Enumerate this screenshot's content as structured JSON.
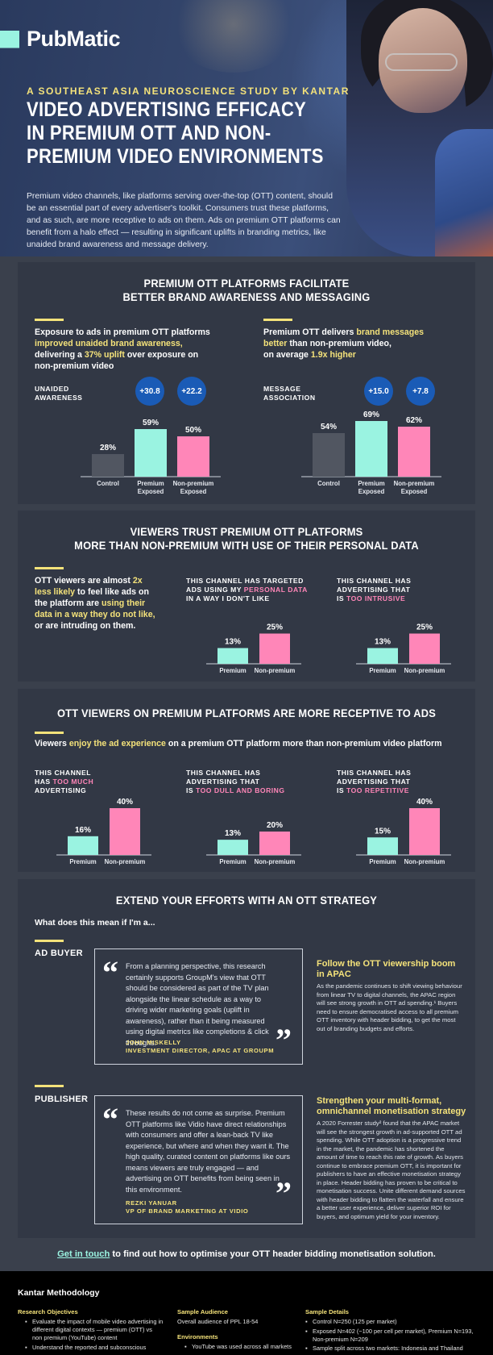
{
  "brand": {
    "name": "PubMatic",
    "accent": "#f4e27a",
    "mint": "#9af3e1",
    "pink": "#ff86b8",
    "dark_bar": "#515661",
    "bubble": "#1a5bb6"
  },
  "hero": {
    "kicker": "A SOUTHEAST ASIA NEUROSCIENCE STUDY BY KANTAR",
    "title": "VIDEO ADVERTISING EFFICACY IN PREMIUM OTT AND NON-PREMIUM VIDEO ENVIRONMENTS",
    "intro": "Premium video channels, like platforms serving over-the-top (OTT) content, should be an essential part of every advertiser's toolkit. Consumers trust these platforms, and as such, are more receptive to ads on them. Ads on premium OTT platforms can benefit from a halo effect — resulting in significant uplifts in branding metrics, like unaided brand awareness and message delivery."
  },
  "section1": {
    "title_l1": "PREMIUM OTT PLATFORMS FACILITATE",
    "title_l2": "BETTER BRAND AWARENESS AND MESSAGING",
    "left": {
      "lead_a": "Exposure to ads in premium OTT platforms",
      "lead_b": "improved unaided brand awareness,",
      "lead_c": "delivering a",
      "lead_d": "37% uplift",
      "lead_e": "over exposure on",
      "lead_f": "non-premium video",
      "metric_l1": "UNAIDED",
      "metric_l2": "AWARENESS",
      "bubble1": "+30.8",
      "bubble2": "+22.2"
    },
    "right": {
      "lead_a": "Premium OTT delivers",
      "lead_b": "brand messages",
      "lead_c": "better",
      "lead_d": "than non-premium video,",
      "lead_e": "on average",
      "lead_f": "1.9x higher",
      "metric_l1": "MESSAGE",
      "metric_l2": "ASSOCIATION",
      "bubble1": "+15.0",
      "bubble2": "+7.8"
    }
  },
  "section2": {
    "title_l1": "VIEWERS TRUST PREMIUM OTT PLATFORMS",
    "title_l2": "MORE THAN NON-PREMIUM WITH USE OF THEIR PERSONAL DATA",
    "lead_a": "OTT viewers are almost",
    "lead_b": "2x less likely",
    "lead_c": "to feel like ads on the platform are",
    "lead_d": "using their data in a way they do not like,",
    "lead_e": "or are intruding on them.",
    "c1_l1": "THIS CHANNEL HAS TARGETED",
    "c1_l2a": "ADS USING MY",
    "c1_l2b": "PERSONAL DATA",
    "c1_l3": "IN A WAY I DON'T LIKE",
    "c2_l1": "THIS CHANNEL HAS",
    "c2_l2": "ADVERTISING THAT",
    "c2_l3a": "IS",
    "c2_l3b": "TOO INTRUSIVE"
  },
  "section3": {
    "title": "OTT VIEWERS ON PREMIUM PLATFORMS ARE MORE RECEPTIVE TO ADS",
    "lead_a": "Viewers",
    "lead_b": "enjoy the ad experience",
    "lead_c": "on a premium OTT platform more than non-premium video platform",
    "c1_l1": "THIS CHANNEL",
    "c1_l2a": "HAS",
    "c1_l2b": "TOO MUCH",
    "c1_l3": "ADVERTISING",
    "c2_l1": "THIS CHANNEL HAS",
    "c2_l2": "ADVERTISING THAT",
    "c2_l3a": "IS",
    "c2_l3b": "TOO DULL AND BORING",
    "c3_l1": "THIS CHANNEL HAS",
    "c3_l2": "ADVERTISING THAT",
    "c3_l3a": "IS",
    "c3_l3b": "TOO REPETITIVE"
  },
  "section4": {
    "title": "EXTEND YOUR EFFORTS WITH AN OTT STRATEGY",
    "question": "What does this mean if I'm a...",
    "buyer": {
      "role": "AD BUYER",
      "quote": "From a planning perspective, this research certainly supports GroupM's view that OTT should be considered as part of the TV plan alongside the linear schedule as a way to driving wider marketing goals (uplift in awareness), rather than it being measured using digital metrics like completions & click throughs.",
      "name": "JOHN MISKELLY",
      "title": "INVESTMENT DIRECTOR, APAC AT GROUPM",
      "side_h1": "Follow the OTT viewership boom",
      "side_h2": "in APAC",
      "side_t": "As the pandemic continues to shift viewing behaviour from linear TV to digital channels, the APAC region will see strong growth in OTT ad spending.¹ Buyers need to ensure democratised access to all premium OTT inventory with header bidding, to get the most out of branding budgets and efforts."
    },
    "publisher": {
      "role": "PUBLISHER",
      "quote": "These results do not come as surprise. Premium OTT platforms like Vidio have direct relationships with consumers and offer a lean-back TV like experience, but where and when they want it. The high quality, curated content on platforms like ours means viewers are truly engaged — and advertising on OTT benefits from being seen in this environment.",
      "name": "REZKI YANUAR",
      "title": "VP OF BRAND MARKETING AT VIDIO",
      "side_h1": "Strengthen your multi-format,",
      "side_h2": "omnichannel monetisation strategy",
      "side_t": "A 2020 Forrester study² found that the APAC market will see the strongest growth in ad-supported OTT ad spending. While OTT adoption is a progressive trend in the market, the pandemic has shortened the amount of time to reach this rate of growth. As buyers continue to embrace premium OTT, it is important for publishers to have an effective monetisation strategy in place. Header bidding has proven to be critical to monetisation success. Unite different demand sources with header bidding to flatten the waterfall and ensure a better user experience, deliver superior ROI for buyers, and optimum yield for your inventory."
    }
  },
  "cta": {
    "link": "Get in touch",
    "rest": " to find out how to optimise your OTT header bidding monetisation solution."
  },
  "footer": {
    "title": "Kantar Methodology",
    "col1_h": "Research Objectives",
    "col1_i1": "Evaluate the impact of mobile video advertising in different digital contexts — premium (OTT) vs non premium (YouTube) content",
    "col1_i2": "Understand the reported and subconscious",
    "col2_h1": "Sample Audience",
    "col2_t1": "Overall audience of PPL 18-54",
    "col2_h2": "Environments",
    "col2_i1": "YouTube was used across all markets",
    "col3_h": "Sample Details",
    "col3_i1": "Control N=250 (125 per market)",
    "col3_i2": "Exposed N=402 (~100 per cell per market), Premium N=193, Non-premium N=209",
    "col3_i3": "Sample split across two markets: Indonesia and Thailand"
  },
  "chart_data": [
    {
      "type": "bar",
      "title": "UNAIDED AWARENESS",
      "categories": [
        "Control",
        "Premium Exposed",
        "Non-premium Exposed"
      ],
      "values": [
        28,
        59,
        50
      ],
      "labels": [
        "28%",
        "59%",
        "50%"
      ]
    },
    {
      "type": "bar",
      "title": "MESSAGE ASSOCIATION",
      "categories": [
        "Control",
        "Premium Exposed",
        "Non-premium Exposed"
      ],
      "values": [
        54,
        69,
        62
      ],
      "labels": [
        "54%",
        "69%",
        "62%"
      ]
    },
    {
      "type": "bar",
      "title": "THIS CHANNEL HAS TARGETED ADS USING MY PERSONAL DATA IN A WAY I DON'T LIKE",
      "categories": [
        "Premium",
        "Non-premium"
      ],
      "values": [
        13,
        25
      ],
      "labels": [
        "13%",
        "25%"
      ]
    },
    {
      "type": "bar",
      "title": "THIS CHANNEL HAS ADVERTISING THAT IS TOO INTRUSIVE",
      "categories": [
        "Premium",
        "Non-premium"
      ],
      "values": [
        13,
        25
      ],
      "labels": [
        "13%",
        "25%"
      ]
    },
    {
      "type": "bar",
      "title": "THIS CHANNEL HAS TOO MUCH ADVERTISING",
      "categories": [
        "Premium",
        "Non-premium"
      ],
      "values": [
        16,
        40
      ],
      "labels": [
        "16%",
        "40%"
      ]
    },
    {
      "type": "bar",
      "title": "THIS CHANNEL HAS ADVERTISING THAT IS TOO DULL AND BORING",
      "categories": [
        "Premium",
        "Non-premium"
      ],
      "values": [
        13,
        20
      ],
      "labels": [
        "13%",
        "20%"
      ]
    },
    {
      "type": "bar",
      "title": "THIS CHANNEL HAS ADVERTISING THAT IS TOO REPETITIVE",
      "categories": [
        "Premium",
        "Non-premium"
      ],
      "values": [
        15,
        40
      ],
      "labels": [
        "15%",
        "40%"
      ]
    }
  ]
}
